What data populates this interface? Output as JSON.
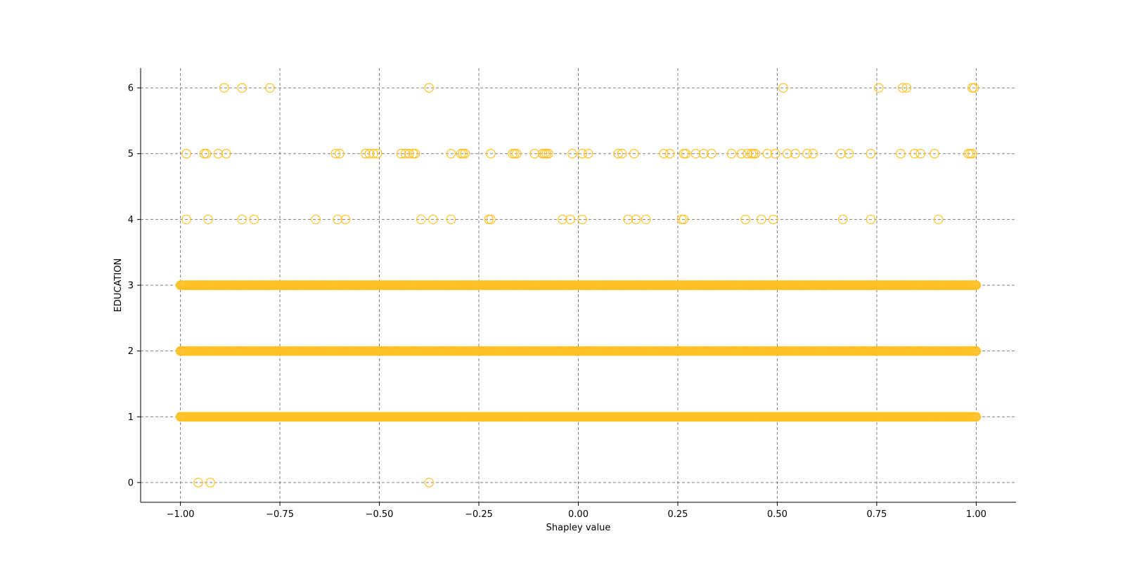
{
  "chart_data": {
    "type": "scatter",
    "title": "",
    "xlabel": "Shapley value",
    "ylabel": "EDUCATION",
    "xlim": [
      -1.1,
      1.1
    ],
    "ylim": [
      -0.3,
      6.3
    ],
    "xticks": [
      -1.0,
      -0.75,
      -0.5,
      -0.25,
      0.0,
      0.25,
      0.5,
      0.75,
      1.0
    ],
    "xtick_labels": [
      "−1.00",
      "−0.75",
      "−0.50",
      "−0.25",
      "0.00",
      "0.25",
      "0.50",
      "0.75",
      "1.00"
    ],
    "yticks": [
      0,
      1,
      2,
      3,
      4,
      5,
      6
    ],
    "ytick_labels": [
      "0",
      "1",
      "2",
      "3",
      "4",
      "5",
      "6"
    ],
    "grid": true,
    "legend": "none",
    "marker": "hollow circle",
    "color": "#FFC125",
    "grid_color": "#7f7f7f",
    "points": [
      {
        "y": 6,
        "x": [
          -0.89,
          -0.845,
          -0.775,
          -0.375,
          0.515,
          0.755,
          0.815,
          0.825,
          0.99,
          0.995
        ]
      },
      {
        "y": 5,
        "x": [
          -0.985,
          -0.94,
          -0.935,
          -0.905,
          -0.885,
          -0.61,
          -0.6,
          -0.535,
          -0.525,
          -0.515,
          -0.505,
          -0.445,
          -0.435,
          -0.425,
          -0.415,
          -0.41,
          -0.32,
          -0.295,
          -0.29,
          -0.285,
          -0.22,
          -0.165,
          -0.16,
          -0.155,
          -0.11,
          -0.09,
          -0.085,
          -0.08,
          -0.075,
          -0.015,
          0.01,
          0.025,
          0.1,
          0.11,
          0.14,
          0.215,
          0.23,
          0.265,
          0.27,
          0.295,
          0.315,
          0.335,
          0.385,
          0.41,
          0.425,
          0.435,
          0.44,
          0.445,
          0.475,
          0.495,
          0.525,
          0.545,
          0.575,
          0.59,
          0.66,
          0.68,
          0.735,
          0.81,
          0.845,
          0.86,
          0.895,
          0.98,
          0.985,
          0.99
        ]
      },
      {
        "y": 4,
        "x": [
          -0.985,
          -0.93,
          -0.845,
          -0.815,
          -0.66,
          -0.605,
          -0.585,
          -0.395,
          -0.365,
          -0.32,
          -0.225,
          -0.22,
          -0.04,
          -0.02,
          0.01,
          0.125,
          0.145,
          0.17,
          0.26,
          0.265,
          0.42,
          0.46,
          0.49,
          0.665,
          0.735,
          0.905
        ]
      },
      {
        "y": 3,
        "x_range": [
          -1.0,
          1.0
        ],
        "density": "continuous"
      },
      {
        "y": 2,
        "x_range": [
          -1.0,
          1.0
        ],
        "density": "continuous"
      },
      {
        "y": 1,
        "x_range": [
          -1.0,
          1.0
        ],
        "density": "continuous"
      },
      {
        "y": 0,
        "x": [
          -0.955,
          -0.925,
          -0.375
        ]
      }
    ]
  }
}
